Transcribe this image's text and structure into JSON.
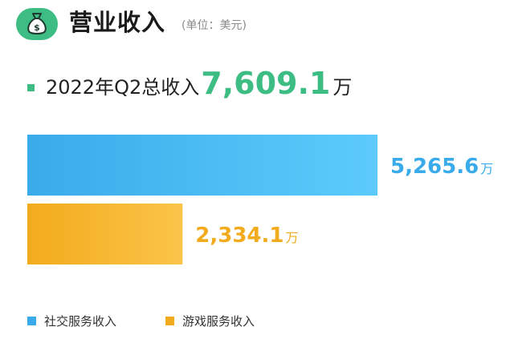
{
  "header": {
    "icon": "money-bag-icon",
    "title": "营业收入",
    "unit": "(单位：美元)"
  },
  "total": {
    "label": "2022年Q2总收入",
    "value": "7,609.1",
    "unit": "万"
  },
  "chart_data": {
    "type": "bar",
    "orientation": "horizontal",
    "categories": [
      "社交服务收入",
      "游戏服务收入"
    ],
    "values": [
      5265.6,
      2334.1
    ],
    "value_labels": [
      "5,265.6",
      "2,334.1"
    ],
    "value_unit": "万",
    "colors": [
      "#3aabea",
      "#f2ab1c"
    ],
    "gradient_end_colors": [
      "#5ccbfb",
      "#fbc449"
    ],
    "legend_placement": "bottom-left",
    "grid": false
  }
}
